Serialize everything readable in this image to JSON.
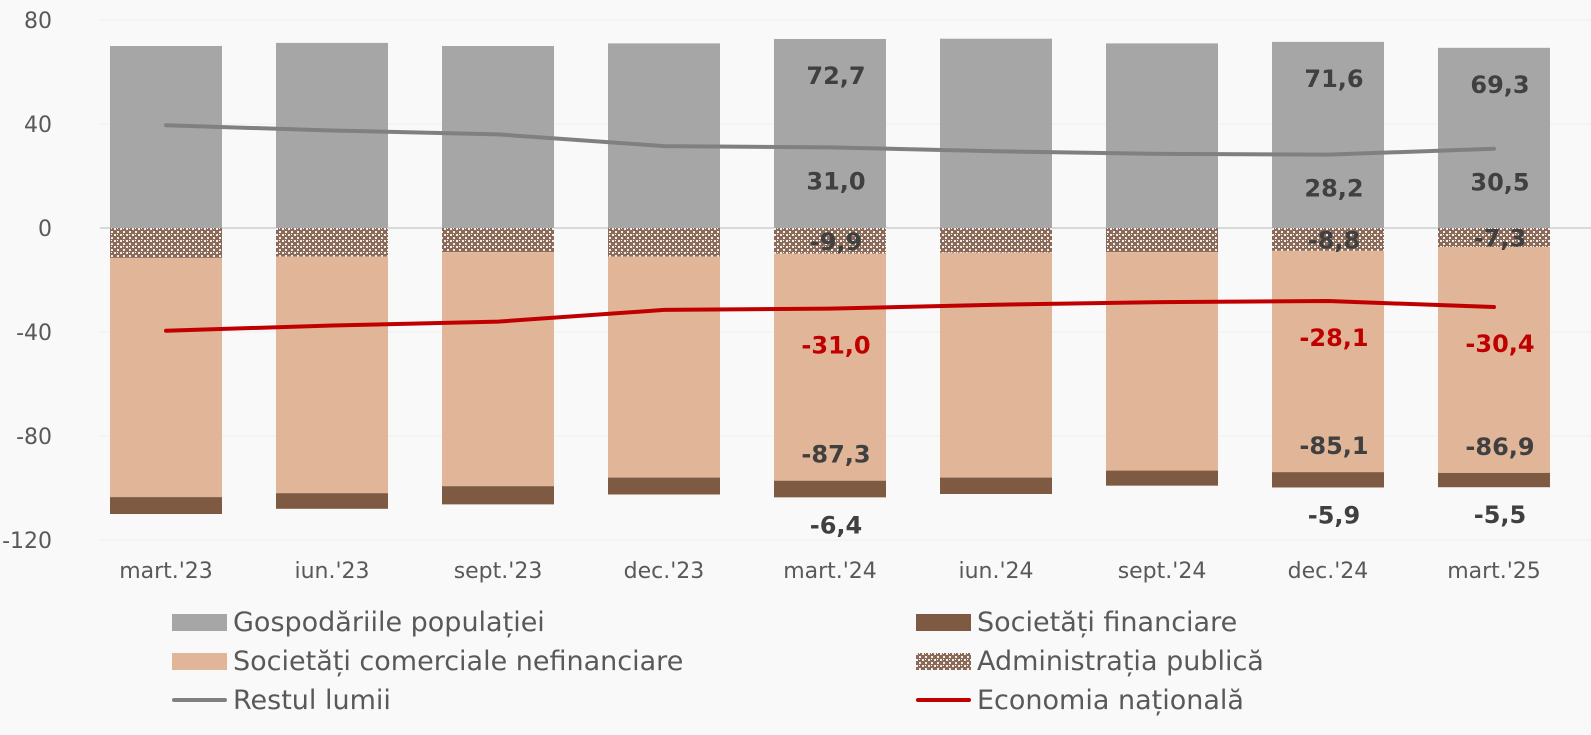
{
  "chart_data": {
    "type": "bar",
    "stacked": true,
    "title": "",
    "xlabel": "",
    "ylabel": "",
    "ylim": [
      -120,
      80
    ],
    "yticks": [
      80,
      40,
      0,
      -40,
      -80,
      -120
    ],
    "ytick_labels": [
      "80",
      "40",
      "0",
      "-40",
      "-80",
      "-120"
    ],
    "grid": true,
    "legend_position": "bottom",
    "categories": [
      "mart.'23",
      "iun.'23",
      "sept.'23",
      "dec.'23",
      "mart.'24",
      "iun.'24",
      "sept.'24",
      "dec.'24",
      "mart.'25"
    ],
    "series": [
      {
        "name": "Gospodăriile populației",
        "kind": "bar",
        "color": "#a6a6a6",
        "values": [
          70.0,
          71.2,
          70.0,
          71.0,
          72.7,
          72.8,
          71.0,
          71.6,
          69.3
        ],
        "labels": [
          "",
          "",
          "",
          "",
          "72,7",
          "",
          "",
          "71,6",
          "69,3"
        ]
      },
      {
        "name": "Administrația publică",
        "kind": "bar",
        "pattern": "hatch",
        "color": "#7a5644",
        "values": [
          -11.5,
          -11.0,
          -9.3,
          -11.0,
          -9.9,
          -9.5,
          -9.3,
          -8.8,
          -7.3
        ],
        "labels": [
          "",
          "",
          "",
          "",
          "-9,9",
          "",
          "",
          "-8,8",
          "-7,3"
        ]
      },
      {
        "name": "Societăți comerciale nefinanciare",
        "kind": "bar",
        "color": "#e0b598",
        "values": [
          -92.0,
          -91.0,
          -90.0,
          -85.0,
          -87.3,
          -86.5,
          -84.0,
          -85.1,
          -86.9
        ],
        "labels": [
          "",
          "",
          "",
          "",
          "-87,3",
          "",
          "",
          "-85,1",
          "-86,9"
        ]
      },
      {
        "name": "Societăți financiare",
        "kind": "bar",
        "color": "#7f5a42",
        "values": [
          -6.5,
          -6.0,
          -7.0,
          -6.5,
          -6.4,
          -6.3,
          -5.8,
          -5.9,
          -5.5
        ],
        "labels": [
          "",
          "",
          "",
          "",
          "-6,4",
          "",
          "",
          "-5,9",
          "-5,5"
        ]
      },
      {
        "name": "Restul lumii",
        "kind": "line",
        "color": "#808080",
        "values": [
          39.5,
          37.5,
          36.0,
          31.5,
          31.0,
          29.5,
          28.5,
          28.2,
          30.5
        ],
        "labels": [
          "",
          "",
          "",
          "",
          "31,0",
          "",
          "",
          "28,2",
          "30,5"
        ]
      },
      {
        "name": "Economia națională",
        "kind": "line",
        "color": "#c00000",
        "values": [
          -39.5,
          -37.5,
          -36.0,
          -31.5,
          -31.0,
          -29.5,
          -28.5,
          -28.1,
          -30.4
        ],
        "labels": [
          "",
          "",
          "",
          "",
          "-31,0",
          "",
          "",
          "-28,1",
          "-30,4"
        ]
      }
    ]
  },
  "legend": {
    "items": [
      {
        "label": "Gospodăriile populației",
        "swatch": "bar",
        "color": "#a6a6a6"
      },
      {
        "label": "Societăți financiare",
        "swatch": "bar",
        "color": "#7f5a42"
      },
      {
        "label": "Societăți comerciale nefinanciare",
        "swatch": "bar",
        "color": "#e0b598"
      },
      {
        "label": "Administrația publică",
        "swatch": "hatch",
        "color": "#7a5644"
      },
      {
        "label": "Restul lumii",
        "swatch": "line",
        "color": "#808080"
      },
      {
        "label": "Economia națională",
        "swatch": "line",
        "color": "#c00000"
      }
    ]
  }
}
